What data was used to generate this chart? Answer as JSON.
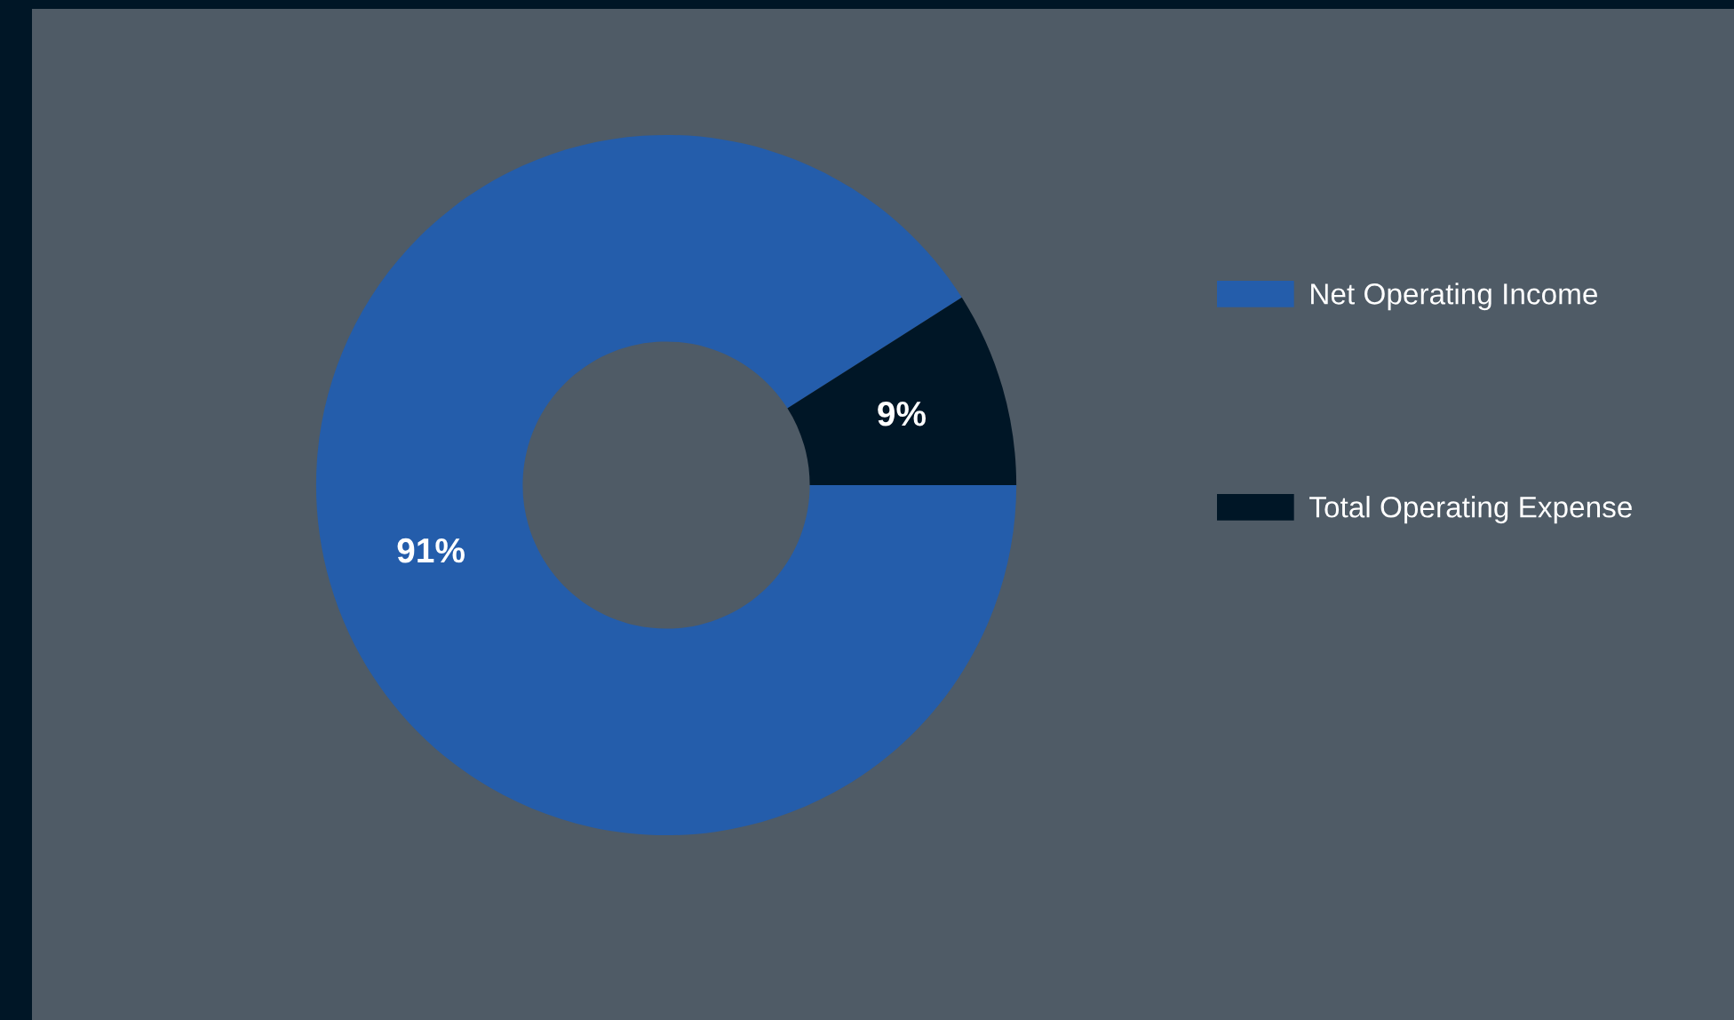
{
  "chart_data": {
    "type": "donut",
    "categories": [
      "Net Operating Income",
      "Total Operating Expense"
    ],
    "values": [
      91,
      9
    ],
    "colors": [
      "#245dab",
      "#001626"
    ],
    "value_labels": [
      "91%",
      "9%"
    ],
    "legend": "right"
  }
}
